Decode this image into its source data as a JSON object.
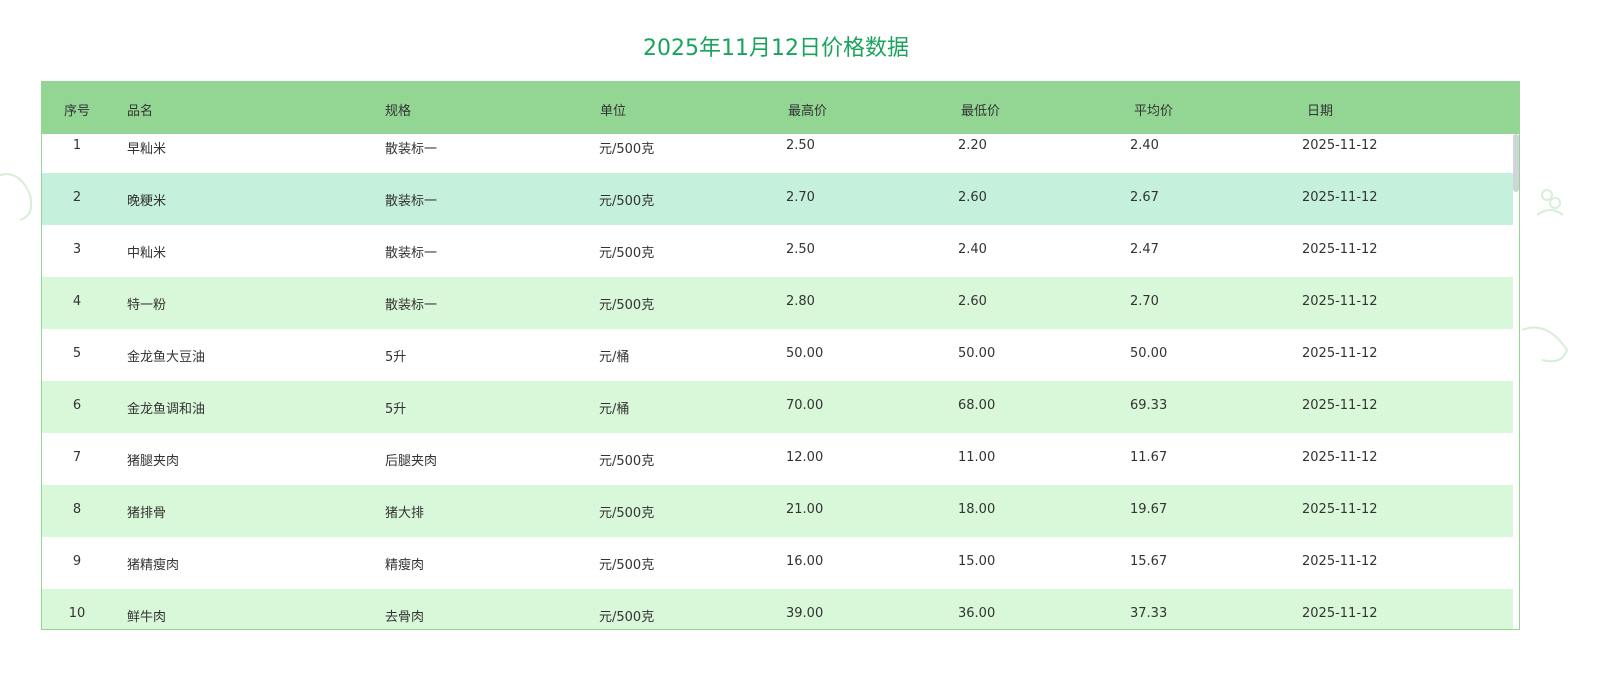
{
  "title": "2025年11月12日价格数据",
  "columns": [
    "序号",
    "品名",
    "规格",
    "单位",
    "最高价",
    "最低价",
    "平均价",
    "日期"
  ],
  "rows": [
    [
      "1",
      "早籼米",
      "散装标一",
      "元/500克",
      "2.50",
      "2.20",
      "2.40",
      "2025-11-12"
    ],
    [
      "2",
      "晚粳米",
      "散装标一",
      "元/500克",
      "2.70",
      "2.60",
      "2.67",
      "2025-11-12"
    ],
    [
      "3",
      "中籼米",
      "散装标一",
      "元/500克",
      "2.50",
      "2.40",
      "2.47",
      "2025-11-12"
    ],
    [
      "4",
      "特一粉",
      "散装标一",
      "元/500克",
      "2.80",
      "2.60",
      "2.70",
      "2025-11-12"
    ],
    [
      "5",
      "金龙鱼大豆油",
      "5升",
      "元/桶",
      "50.00",
      "50.00",
      "50.00",
      "2025-11-12"
    ],
    [
      "6",
      "金龙鱼调和油",
      "5升",
      "元/桶",
      "70.00",
      "68.00",
      "69.33",
      "2025-11-12"
    ],
    [
      "7",
      "猪腿夹肉",
      "后腿夹肉",
      "元/500克",
      "12.00",
      "11.00",
      "11.67",
      "2025-11-12"
    ],
    [
      "8",
      "猪排骨",
      "猪大排",
      "元/500克",
      "21.00",
      "18.00",
      "19.67",
      "2025-11-12"
    ],
    [
      "9",
      "猪精瘦肉",
      "精瘦肉",
      "元/500克",
      "16.00",
      "15.00",
      "15.67",
      "2025-11-12"
    ],
    [
      "10",
      "鲜牛肉",
      "去骨肉",
      "元/500克",
      "39.00",
      "36.00",
      "37.33",
      "2025-11-12"
    ]
  ],
  "hover_row": 1,
  "colors": {
    "title": "#1aa35c",
    "header_bg": "#93d693",
    "stripe": "#d9f8d9",
    "hover": "#c5f0dc",
    "border": "#93d693"
  }
}
